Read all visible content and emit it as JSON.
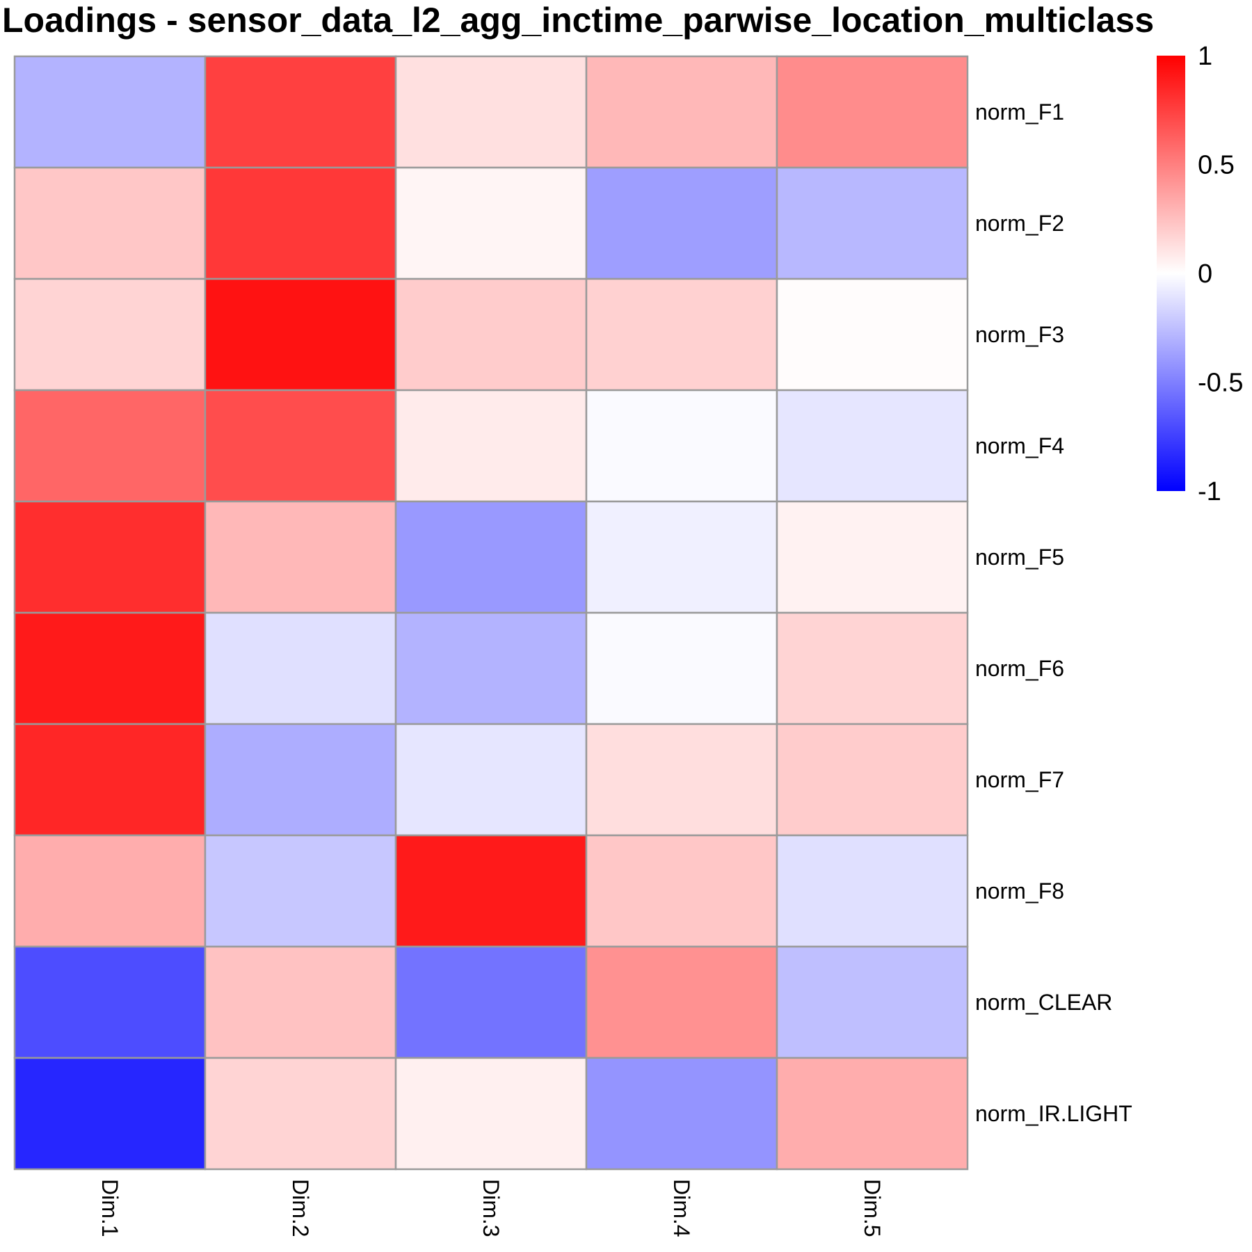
{
  "chart_data": {
    "type": "heatmap",
    "title": "Loadings - sensor_data_l2_agg_inctime_parwise_location_multiclass",
    "rows": [
      "norm_F1",
      "norm_F2",
      "norm_F3",
      "norm_F4",
      "norm_F5",
      "norm_F6",
      "norm_F7",
      "norm_F8",
      "norm_CLEAR",
      "norm_IR.LIGHT"
    ],
    "columns": [
      "Dim.1",
      "Dim.2",
      "Dim.3",
      "Dim.4",
      "Dim.5"
    ],
    "values": [
      [
        -0.3,
        0.75,
        0.12,
        0.28,
        0.45
      ],
      [
        0.22,
        0.78,
        0.04,
        -0.38,
        -0.28
      ],
      [
        0.17,
        0.93,
        0.2,
        0.18,
        0.01
      ],
      [
        0.6,
        0.7,
        0.08,
        -0.02,
        -0.1
      ],
      [
        0.82,
        0.28,
        -0.4,
        -0.06,
        0.05
      ],
      [
        0.9,
        -0.12,
        -0.3,
        -0.02,
        0.17
      ],
      [
        0.85,
        -0.32,
        -0.1,
        0.13,
        0.2
      ],
      [
        0.32,
        -0.22,
        0.9,
        0.22,
        -0.12
      ],
      [
        -0.7,
        0.24,
        -0.55,
        0.43,
        -0.25
      ],
      [
        -0.85,
        0.17,
        0.06,
        -0.42,
        0.32
      ]
    ],
    "color_scale": {
      "min": -1,
      "mid": 0,
      "max": 1,
      "low_color": "#0000ff",
      "mid_color": "#ffffff",
      "high_color": "#ff0000",
      "ticks": [
        1,
        0.5,
        0,
        -0.5,
        -1
      ],
      "tick_labels": [
        "1",
        "0.5",
        "0",
        "-0.5",
        "-1"
      ]
    },
    "legend_position": "top-right",
    "grid": true
  }
}
